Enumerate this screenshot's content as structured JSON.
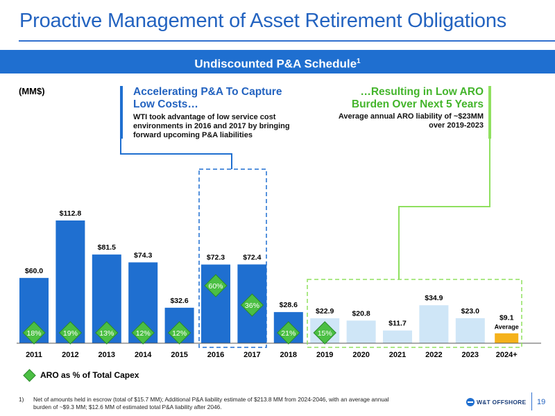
{
  "title": "Proactive Management of Asset Retirement Obligations",
  "banner": {
    "text": "Undiscounted P&A Schedule",
    "footnote_mark": "1"
  },
  "units": "(MM$)",
  "callout_left": {
    "heading_line1": "Accelerating P&A To Capture",
    "heading_line2": "Low Costs…",
    "body_line1": "WTI took advantage of low service cost",
    "body_line2": "environments in 2016 and 2017 by bringing",
    "body_line3": "forward upcoming P&A liabilities"
  },
  "callout_right": {
    "heading_line1": "…Resulting in Low ARO",
    "heading_line2": "Burden Over Next 5 Years",
    "body_line1": "Average annual ARO liability of ~$23MM",
    "body_line2": "over 2019-2023"
  },
  "chart_data": {
    "type": "bar",
    "categories": [
      "2011",
      "2012",
      "2013",
      "2014",
      "2015",
      "2016",
      "2017",
      "2018",
      "2019",
      "2020",
      "2021",
      "2022",
      "2023",
      "2024+"
    ],
    "values": [
      60.0,
      112.8,
      81.5,
      74.3,
      32.6,
      72.3,
      72.4,
      28.6,
      22.9,
      20.8,
      11.7,
      34.9,
      23.0,
      9.1
    ],
    "value_labels": [
      "$60.0",
      "$112.8",
      "$81.5",
      "$74.3",
      "$32.6",
      "$72.3",
      "$72.4",
      "$28.6",
      "$22.9",
      "$20.8",
      "$11.7",
      "$34.9",
      "$23.0",
      "$9.1"
    ],
    "extra_label_2024": "Average",
    "aro_pct_labels": [
      "18%",
      "19%",
      "13%",
      "12%",
      "12%",
      "60%",
      "36%",
      "21%",
      "15%"
    ],
    "ylim": [
      0,
      120
    ],
    "colors": {
      "historical": "#1f6fd0",
      "forecast": "#cfe6f7",
      "average": "#f5b21b",
      "diamond": "#4bbf43",
      "left_accent": "#1f6fd0",
      "right_accent": "#8fe05f"
    }
  },
  "legend": {
    "label": "ARO as % of Total Capex"
  },
  "footnote": {
    "number": "1)",
    "line1": "Net of amounts held in escrow (total of $15.7 MM); Additional P&A liability estimate of $213.8 MM from 2024-2046, with an average annual",
    "line2": "burden of ~$9.3 MM; $12.6 MM of estimated total P&A liability after 2046."
  },
  "logo": {
    "text": "W&T OFFSHORE"
  },
  "page_number": "19"
}
